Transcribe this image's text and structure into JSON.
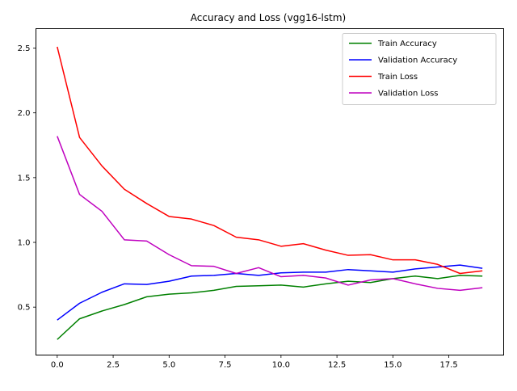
{
  "chart_data": {
    "type": "line",
    "title": "Accuracy and Loss (vgg16-lstm)",
    "xlabel": "",
    "ylabel": "",
    "xlim": [
      -0.95,
      19.95
    ],
    "ylim": [
      0.13,
      2.65
    ],
    "xticks": [
      0.0,
      2.5,
      5.0,
      7.5,
      10.0,
      12.5,
      15.0,
      17.5
    ],
    "xtick_labels": [
      "0.0",
      "2.5",
      "5.0",
      "7.5",
      "10.0",
      "12.5",
      "15.0",
      "17.5"
    ],
    "yticks": [
      0.5,
      1.0,
      1.5,
      2.0,
      2.5
    ],
    "ytick_labels": [
      "0.5",
      "1.0",
      "1.5",
      "2.0",
      "2.5"
    ],
    "grid": false,
    "legend_position": "top-right",
    "x": [
      0,
      1,
      2,
      3,
      4,
      5,
      6,
      7,
      8,
      9,
      10,
      11,
      12,
      13,
      14,
      15,
      16,
      17,
      18,
      19
    ],
    "series": [
      {
        "name": "Train Accuracy",
        "color": "#008000",
        "values": [
          0.25,
          0.41,
          0.47,
          0.52,
          0.58,
          0.6,
          0.61,
          0.63,
          0.66,
          0.665,
          0.67,
          0.655,
          0.68,
          0.7,
          0.69,
          0.72,
          0.74,
          0.72,
          0.745,
          0.74
        ]
      },
      {
        "name": "Validation Accuracy",
        "color": "#0000ff",
        "values": [
          0.4,
          0.53,
          0.615,
          0.68,
          0.675,
          0.7,
          0.74,
          0.745,
          0.76,
          0.745,
          0.765,
          0.77,
          0.77,
          0.79,
          0.78,
          0.77,
          0.795,
          0.81,
          0.825,
          0.8
        ]
      },
      {
        "name": "Train Loss",
        "color": "#ff0000",
        "values": [
          2.51,
          1.81,
          1.59,
          1.41,
          1.3,
          1.2,
          1.18,
          1.13,
          1.04,
          1.02,
          0.97,
          0.99,
          0.94,
          0.9,
          0.905,
          0.865,
          0.865,
          0.83,
          0.76,
          0.78
        ]
      },
      {
        "name": "Validation Loss",
        "color": "#bf00bf",
        "values": [
          1.82,
          1.37,
          1.24,
          1.02,
          1.01,
          0.905,
          0.82,
          0.815,
          0.76,
          0.805,
          0.735,
          0.745,
          0.725,
          0.67,
          0.71,
          0.72,
          0.68,
          0.645,
          0.63,
          0.65
        ]
      }
    ]
  }
}
